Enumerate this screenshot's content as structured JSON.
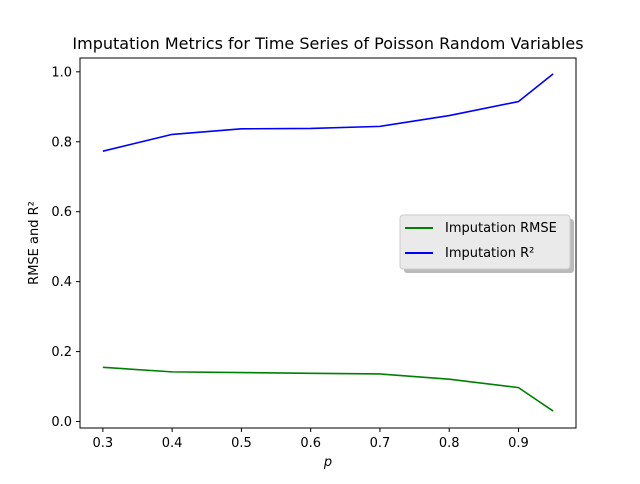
{
  "chart_data": {
    "type": "line",
    "title": "Imputation Metrics for Time Series of Poisson Random Variables",
    "xlabel": "p",
    "ylabel": "RMSE and R²",
    "x": [
      0.3,
      0.4,
      0.5,
      0.6,
      0.7,
      0.8,
      0.9,
      0.95
    ],
    "xlim": [
      0.267,
      0.983
    ],
    "ylim": [
      -0.0185,
      1.0395
    ],
    "xticks": [
      0.3,
      0.4,
      0.5,
      0.6,
      0.7,
      0.8,
      0.9
    ],
    "xtick_labels": [
      "0.3",
      "0.4",
      "0.5",
      "0.6",
      "0.7",
      "0.8",
      "0.9"
    ],
    "yticks": [
      0.0,
      0.2,
      0.4,
      0.6,
      0.8,
      1.0
    ],
    "ytick_labels": [
      "0.0",
      "0.2",
      "0.4",
      "0.6",
      "0.8",
      "1.0"
    ],
    "grid": false,
    "legend_position": "center-right",
    "series": [
      {
        "name": "Imputation RMSE",
        "color": "#008000",
        "values": [
          0.155,
          0.142,
          0.14,
          0.138,
          0.136,
          0.121,
          0.097,
          0.03
        ]
      },
      {
        "name": "Imputation R²",
        "color": "#0000ff",
        "values": [
          0.773,
          0.821,
          0.837,
          0.838,
          0.844,
          0.875,
          0.915,
          0.994
        ]
      }
    ]
  }
}
